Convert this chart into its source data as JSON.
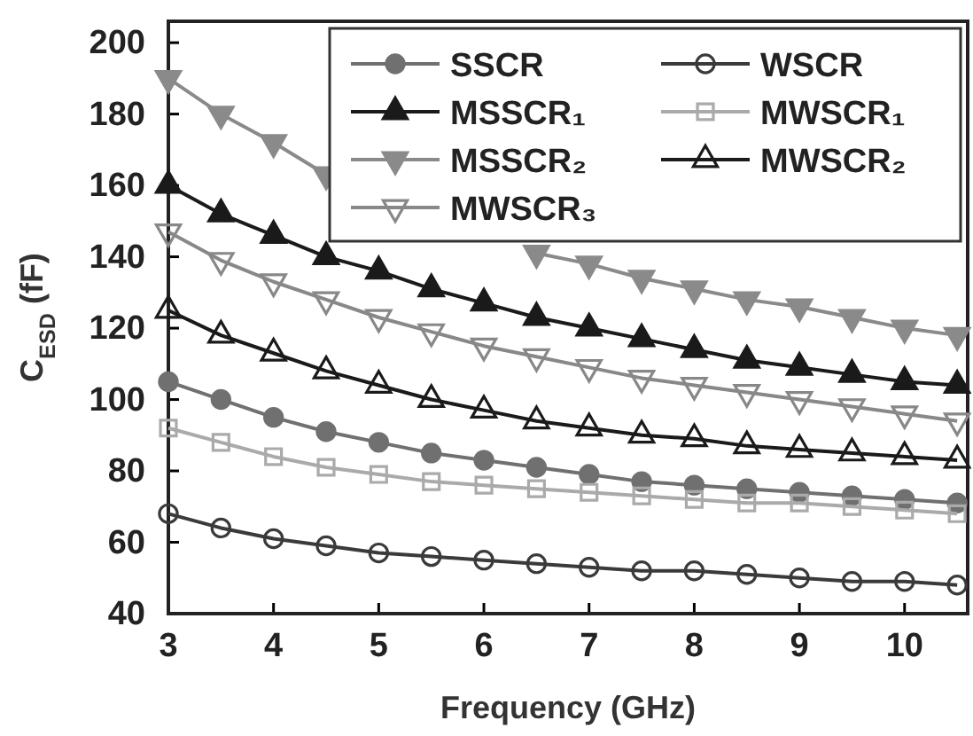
{
  "chart_data": {
    "type": "line",
    "xlabel": "Frequency (GHz)",
    "ylabel": "C$_{ESD}$ (fF)",
    "xlim": [
      3,
      10.6
    ],
    "ylim": [
      40,
      206
    ],
    "xticks": [
      3,
      4,
      5,
      6,
      7,
      8,
      9,
      10
    ],
    "yticks": [
      40,
      60,
      80,
      100,
      120,
      140,
      160,
      180,
      200
    ],
    "x": [
      3,
      3.5,
      4,
      4.5,
      5,
      5.5,
      6,
      6.5,
      7,
      7.5,
      8,
      8.5,
      9,
      9.5,
      10,
      10.5
    ],
    "legend": "top right",
    "grid": false,
    "series": [
      {
        "name": "SSCR",
        "color": "#707070",
        "marker": "circle",
        "values": [
          105,
          100,
          95,
          91,
          88,
          85,
          83,
          81,
          79,
          77,
          76,
          75,
          74,
          73,
          72,
          71
        ]
      },
      {
        "name": "WSCR",
        "color": "#3a3a3a",
        "marker": "circle-open",
        "values": [
          68,
          64,
          61,
          59,
          57,
          56,
          55,
          54,
          53,
          52,
          52,
          51,
          50,
          49,
          49,
          48
        ]
      },
      {
        "name": "MSSCR₁",
        "color": "#1a1a1a",
        "marker": "triangle",
        "values": [
          160,
          152,
          146,
          140,
          136,
          131,
          127,
          123,
          120,
          117,
          114,
          111,
          109,
          107,
          105,
          104
        ]
      },
      {
        "name": "MWSCR₁",
        "color": "#aaaaaa",
        "marker": "square-open",
        "values": [
          92,
          88,
          84,
          81,
          79,
          77,
          76,
          75,
          74,
          73,
          72,
          71,
          71,
          70,
          69,
          68
        ]
      },
      {
        "name": "MSSCR₂",
        "color": "#8a8a8a",
        "marker": "triangle-down",
        "values": [
          190,
          180,
          172,
          163,
          null,
          null,
          null,
          141,
          138,
          134,
          131,
          128,
          126,
          123,
          120,
          118
        ]
      },
      {
        "name": "MWSCR₂",
        "color": "#1a1a1a",
        "marker": "triangle-open",
        "values": [
          125,
          118,
          113,
          108,
          104,
          100,
          97,
          94,
          92,
          90,
          89,
          87,
          86,
          85,
          84,
          83
        ]
      },
      {
        "name": "MWSCR₃",
        "color": "#888888",
        "marker": "triangle-down-open",
        "values": [
          147,
          139,
          133,
          128,
          123,
          119,
          115,
          112,
          109,
          106,
          104,
          102,
          100,
          98,
          96,
          94
        ]
      }
    ]
  }
}
